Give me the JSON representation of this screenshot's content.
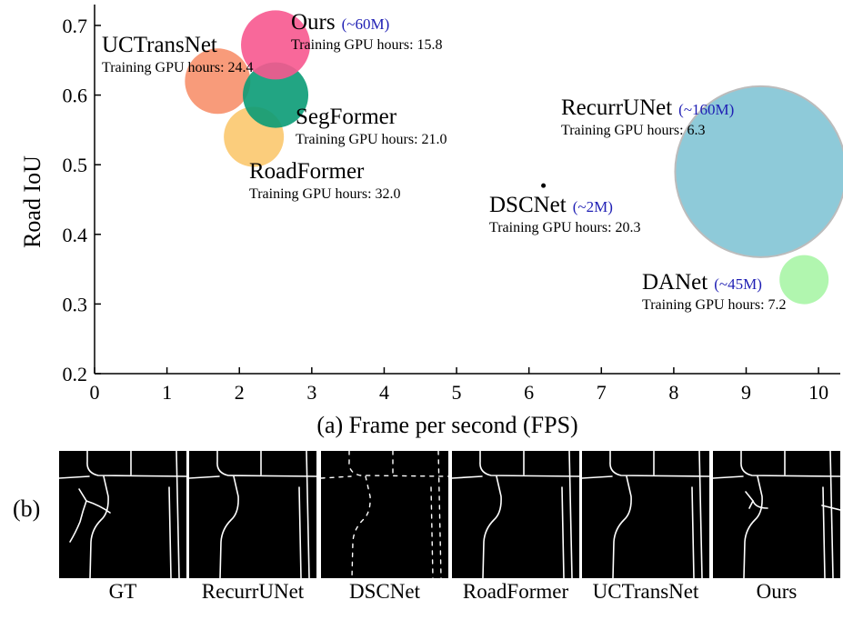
{
  "chart_data": {
    "type": "scatter",
    "subtype": "bubble",
    "title": "",
    "xlabel": "(a) Frame per second (FPS)",
    "ylabel": "Road IoU",
    "xlim": [
      0,
      10.3
    ],
    "ylim": [
      0.2,
      0.73
    ],
    "xticks": [
      0,
      1,
      2,
      3,
      4,
      5,
      6,
      7,
      8,
      9,
      10
    ],
    "yticks": [
      0.2,
      0.3,
      0.4,
      0.5,
      0.6,
      0.7
    ],
    "grid": false,
    "legend": "none",
    "points": [
      {
        "name": "UCTransNet",
        "x": 1.7,
        "y": 0.62,
        "gpu_hours_label": "Training GPU hours: 24.4",
        "params": "",
        "color": "#f7906c"
      },
      {
        "name": "RoadFormer",
        "x": 2.2,
        "y": 0.54,
        "gpu_hours_label": "Training GPU hours: 32.0",
        "params": "",
        "color": "#fbc86e"
      },
      {
        "name": "SegFormer",
        "x": 2.5,
        "y": 0.6,
        "gpu_hours_label": "Training GPU hours: 21.0",
        "params": "",
        "color": "#0a9b76"
      },
      {
        "name": "Ours",
        "x": 2.5,
        "y": 0.672,
        "gpu_hours_label": "Training GPU hours: 15.8",
        "params": "(~60M)",
        "color": "#f7588f"
      },
      {
        "name": "DSCNet",
        "x": 6.2,
        "y": 0.47,
        "gpu_hours_label": "Training GPU hours: 20.3",
        "params": "(~2M)",
        "color": "#000000"
      },
      {
        "name": "RecurrUNet",
        "x": 9.2,
        "y": 0.49,
        "gpu_hours_label": "Training GPU hours: 6.3",
        "params": "(~160M)",
        "color": "#8ecad9"
      },
      {
        "name": "DANet",
        "x": 9.8,
        "y": 0.335,
        "gpu_hours_label": "Training GPU hours: 7.2",
        "params": "(~45M)",
        "color": "#a9f5a6"
      }
    ]
  },
  "panel_b": {
    "label": "(b)",
    "panels": [
      "GT",
      "RecurrUNet",
      "DSCNet",
      "RoadFormer",
      "UCTransNet",
      "Ours"
    ]
  }
}
